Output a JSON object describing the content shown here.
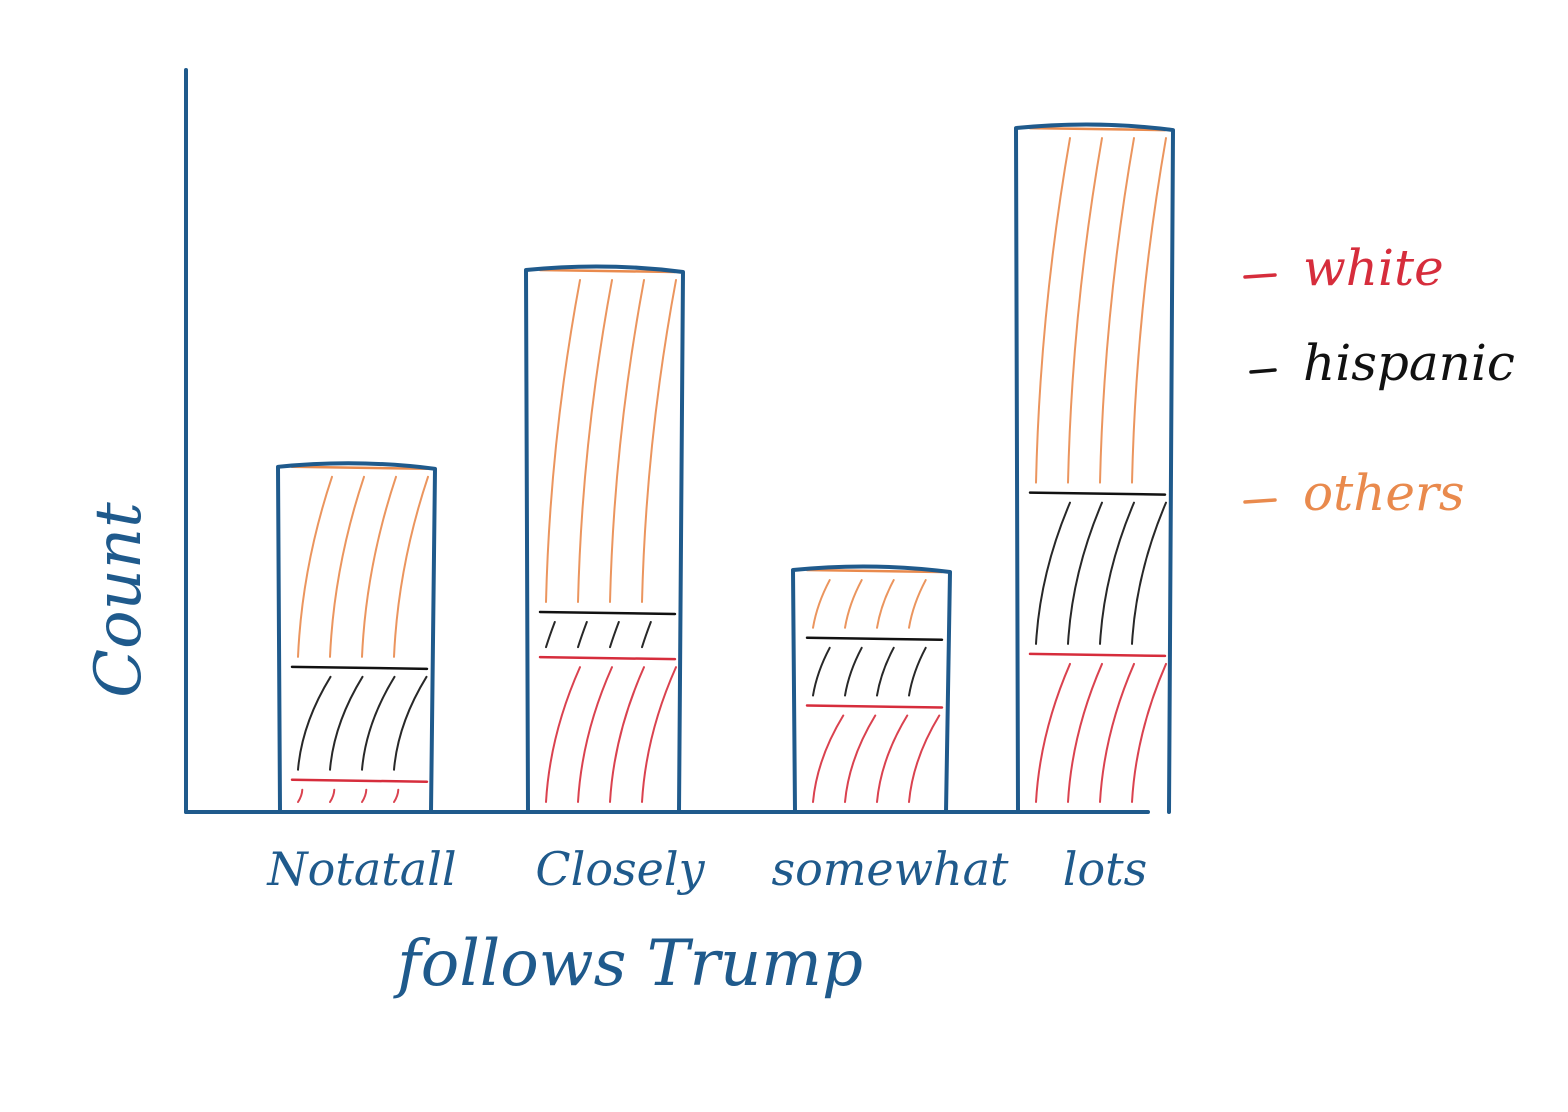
{
  "chart_data": {
    "type": "bar",
    "stacked": true,
    "title": "",
    "xlabel": "follows Trump",
    "ylabel": "Count",
    "categories": [
      "Notatall",
      "Closely",
      "somewhat",
      "lots"
    ],
    "series": [
      {
        "name": "white",
        "values": [
          1,
          4.8,
          3.3,
          4.9
        ],
        "color": "#d62d3c"
      },
      {
        "name": "hispanic",
        "values": [
          3.5,
          1.4,
          2.1,
          5.0
        ],
        "color": "#111111"
      },
      {
        "name": "others",
        "values": [
          6.2,
          10.6,
          2.1,
          11.3
        ],
        "color": "#e98a4d"
      }
    ],
    "ylim": [
      0,
      23
    ],
    "legend_position": "right",
    "grid": false,
    "axis_color": "#1f5a8c"
  }
}
